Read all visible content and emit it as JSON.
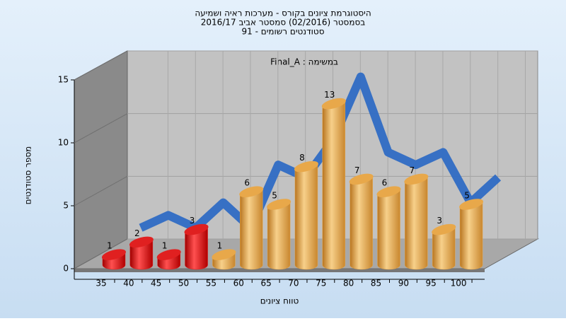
{
  "chart_data": {
    "type": "bar",
    "title": [
      "היסטוגרמת ציונים בקורס - מערכות ראיה ושמיעה",
      "בסמסטר  (02/2016)  סמסטר אביב 2016/17",
      "סטודנטים רשומים - 91"
    ],
    "subtitle": "Final_A : במשימה",
    "x_label": "טווח ציונים",
    "y_label": "מספר סטודנטים",
    "categories": [
      "35",
      "40",
      "45",
      "50",
      "55",
      "60",
      "65",
      "70",
      "75",
      "80",
      "85",
      "90",
      "95",
      "100"
    ],
    "values": [
      1,
      2,
      1,
      3,
      1,
      6,
      5,
      8,
      13,
      7,
      6,
      7,
      3,
      5
    ],
    "colors": [
      "#e02020",
      "#e02020",
      "#e02020",
      "#e02020",
      "#e8a84a",
      "#e8a84a",
      "#e8a84a",
      "#e8a84a",
      "#e8a84a",
      "#e8a84a",
      "#e8a84a",
      "#e8a84a",
      "#e8a84a",
      "#e8a84a"
    ],
    "trend_color": "#2f6cc4",
    "ylim": [
      0,
      15
    ],
    "yticks": [
      0,
      5,
      10,
      15
    ],
    "grid": true
  }
}
